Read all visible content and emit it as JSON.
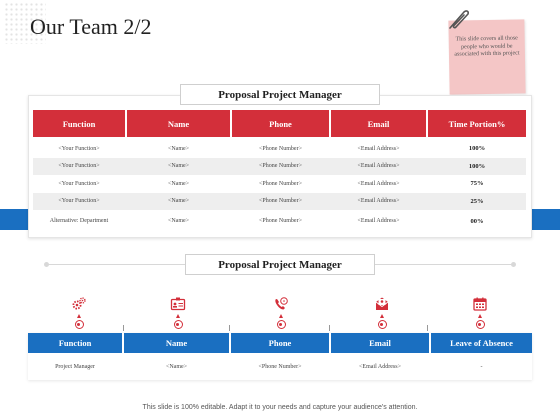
{
  "page": {
    "title": "Our Team 2/2"
  },
  "note": {
    "text": "This slide covers all those people who would be associated with this project"
  },
  "section1": {
    "heading": "Proposal Project Manager",
    "columns": [
      "Function",
      "Name",
      "Phone",
      "Email",
      "Time Portion%"
    ],
    "rows": [
      [
        "<Your Function>",
        "<Name>",
        "<Phone Number>",
        "<Email Address>",
        "100%"
      ],
      [
        "<Your Function>",
        "<Name>",
        "<Phone Number>",
        "<Email Address>",
        "100%"
      ],
      [
        "<Your Function>",
        "<Name>",
        "<Phone Number>",
        "<Email Address>",
        "75%"
      ],
      [
        "<Your Function>",
        "<Name>",
        "<Phone Number>",
        "<Email Address>",
        "25%"
      ],
      [
        "Alternative: Department",
        "<Name>",
        "<Phone Number>",
        "<Email Address>",
        "00%"
      ]
    ]
  },
  "section2": {
    "heading": "Proposal Project Manager",
    "icons": [
      "gears-icon",
      "id-card-icon",
      "phone-icon",
      "email-icon",
      "calendar-icon"
    ],
    "columns": [
      "Function",
      "Name",
      "Phone",
      "Email",
      "Leave of Absence"
    ],
    "rows": [
      [
        "Project Manager",
        "<Name>",
        "<Phone Number>",
        "<Email Address>",
        "-"
      ]
    ]
  },
  "footer": {
    "text": "This slide is 100% editable. Adapt it to your needs and capture your audience's attention."
  },
  "colors": {
    "accent_red": "#d32f3a",
    "accent_blue": "#1a6fc1",
    "note_pink": "#f4c6c6"
  }
}
